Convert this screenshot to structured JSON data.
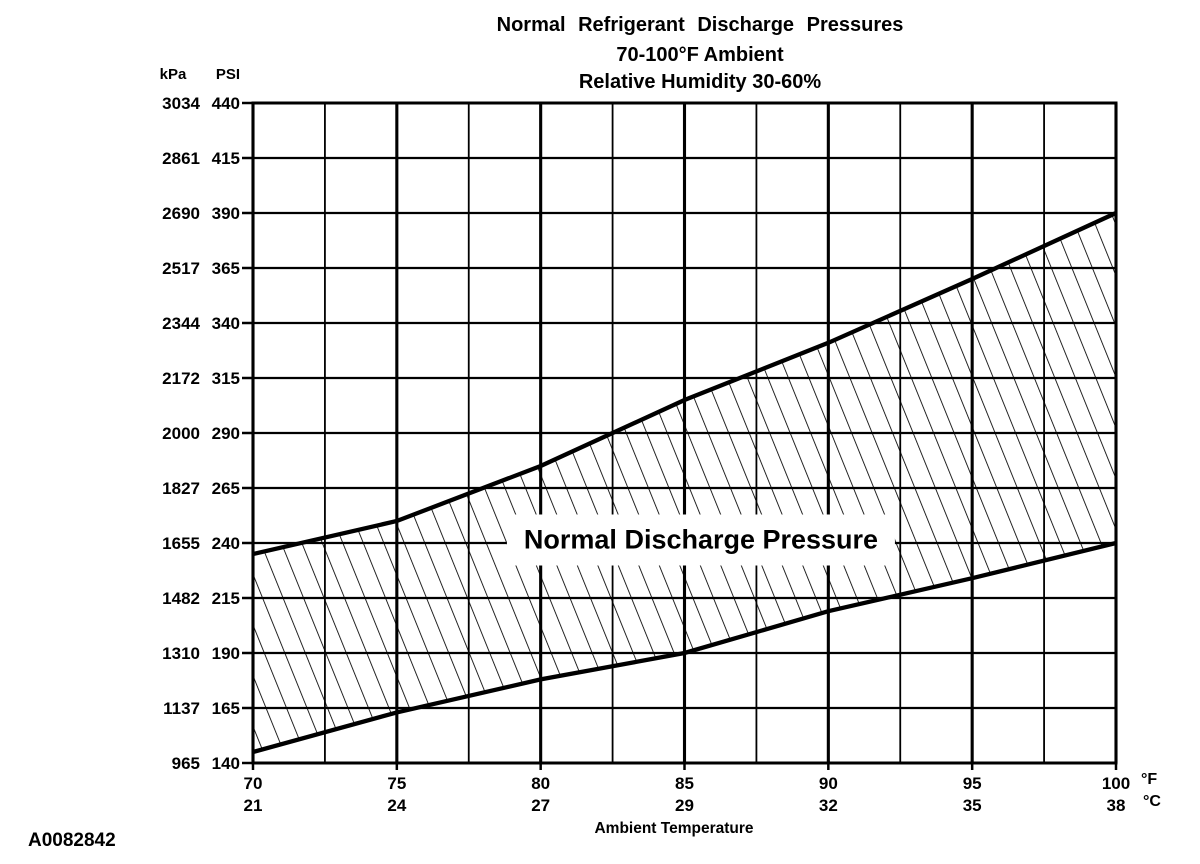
{
  "figure_id": "A0082842",
  "chart_data": {
    "type": "area",
    "title": "Normal Refrigerant Discharge Pressures",
    "subtitle1": "70-100°F Ambient",
    "subtitle2": "Relative Humidity 30-60%",
    "band_label": "Normal Discharge Pressure",
    "grid": "on",
    "x_axis": {
      "label": "Ambient Temperature",
      "unit_primary": "°F",
      "unit_secondary": "°C",
      "range_f": [
        70,
        100
      ],
      "minor_step_f": 2.5,
      "ticks": [
        {
          "f": "70",
          "c": "21"
        },
        {
          "f": "75",
          "c": "24"
        },
        {
          "f": "80",
          "c": "27"
        },
        {
          "f": "85",
          "c": "29"
        },
        {
          "f": "90",
          "c": "32"
        },
        {
          "f": "95",
          "c": "35"
        },
        {
          "f": "100",
          "c": "38"
        }
      ]
    },
    "y_axis": {
      "unit_primary": "kPa",
      "unit_secondary": "PSI",
      "range_psi": [
        140,
        440
      ],
      "step_psi": 25,
      "ticks": [
        {
          "kpa": "3034",
          "psi": "440"
        },
        {
          "kpa": "2861",
          "psi": "415"
        },
        {
          "kpa": "2690",
          "psi": "390"
        },
        {
          "kpa": "2517",
          "psi": "365"
        },
        {
          "kpa": "2344",
          "psi": "340"
        },
        {
          "kpa": "2172",
          "psi": "315"
        },
        {
          "kpa": "2000",
          "psi": "290"
        },
        {
          "kpa": "1827",
          "psi": "265"
        },
        {
          "kpa": "1655",
          "psi": "240"
        },
        {
          "kpa": "1482",
          "psi": "215"
        },
        {
          "kpa": "1310",
          "psi": "190"
        },
        {
          "kpa": "1137",
          "psi": "165"
        },
        {
          "kpa": "965",
          "psi": "140"
        }
      ]
    },
    "series": [
      {
        "name": "upper_limit_psi",
        "points": [
          [
            70,
            235
          ],
          [
            75,
            250
          ],
          [
            80,
            275
          ],
          [
            85,
            305
          ],
          [
            90,
            331
          ],
          [
            95,
            360
          ],
          [
            100,
            390
          ]
        ]
      },
      {
        "name": "lower_limit_psi",
        "points": [
          [
            70,
            145
          ],
          [
            75,
            163
          ],
          [
            80,
            178
          ],
          [
            85,
            190
          ],
          [
            90,
            209
          ],
          [
            95,
            224
          ],
          [
            100,
            240
          ]
        ]
      }
    ],
    "colors": {
      "line": "#000000",
      "background": "#ffffff"
    }
  }
}
